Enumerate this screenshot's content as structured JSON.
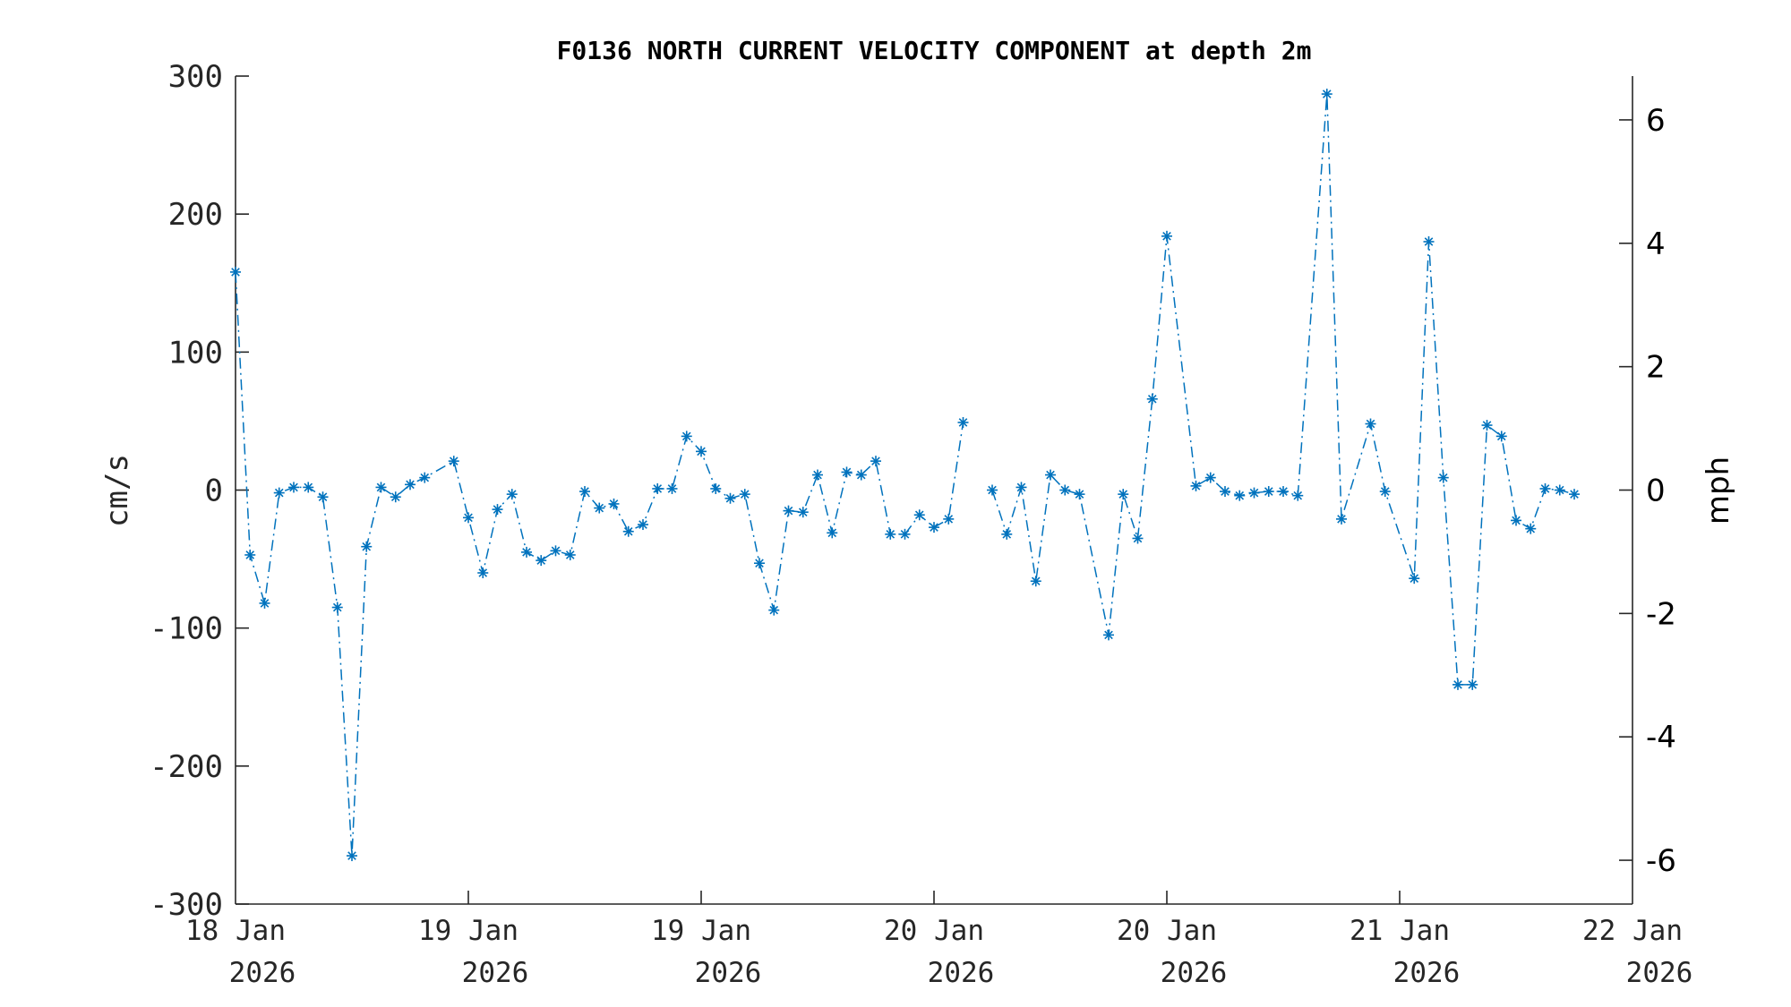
{
  "chart_data": {
    "type": "line",
    "title": "F0136 NORTH CURRENT VELOCITY COMPONENT at depth 2m",
    "ylabel": "cm/s",
    "ylabel_right": "mph",
    "ylim": [
      -300,
      300
    ],
    "ylim_right": [
      -6.71,
      6.71
    ],
    "xlim": [
      "2026-01-18T00:00",
      "2026-01-22T00:00"
    ],
    "yticks": [
      "300",
      "200",
      "100",
      "0",
      "-100",
      "-200",
      "-300"
    ],
    "yticks_right": [
      "6",
      "4",
      "2",
      "0",
      "-2",
      "-4",
      "-6"
    ],
    "xticks": [
      {
        "line1": "18 Jan",
        "line2": "2026"
      },
      {
        "line1": "19 Jan",
        "line2": "2026"
      },
      {
        "line1": "19 Jan",
        "line2": "2026"
      },
      {
        "line1": "20 Jan",
        "line2": "2026"
      },
      {
        "line1": "20 Jan",
        "line2": "2026"
      },
      {
        "line1": "21 Jan",
        "line2": "2026"
      },
      {
        "line1": "22 Jan",
        "line2": "2026"
      }
    ],
    "grid": false,
    "series_color": "#0072BD",
    "marker": "asterisk",
    "line_style": "dash-dot",
    "series": [
      {
        "values": [
          [
            "2026-01-18T00:00",
            158
          ],
          [
            "2026-01-18T01:00",
            -47
          ],
          [
            "2026-01-18T02:00",
            -82
          ],
          [
            "2026-01-18T03:00",
            -2
          ],
          [
            "2026-01-18T04:00",
            2
          ],
          [
            "2026-01-18T05:00",
            2
          ],
          [
            "2026-01-18T06:00",
            -5
          ],
          [
            "2026-01-18T07:00",
            -85
          ],
          [
            "2026-01-18T08:00",
            -265
          ],
          [
            "2026-01-18T09:00",
            -41
          ],
          [
            "2026-01-18T10:00",
            2
          ],
          [
            "2026-01-18T11:00",
            -5
          ],
          [
            "2026-01-18T12:00",
            4
          ],
          [
            "2026-01-18T13:00",
            9
          ],
          [
            "2026-01-18T15:00",
            21
          ],
          [
            "2026-01-18T16:00",
            -20
          ],
          [
            "2026-01-18T17:00",
            -60
          ],
          [
            "2026-01-18T18:00",
            -14
          ],
          [
            "2026-01-18T19:00",
            -3
          ],
          [
            "2026-01-18T20:00",
            -45
          ],
          [
            "2026-01-18T21:00",
            -51
          ],
          [
            "2026-01-18T22:00",
            -44
          ],
          [
            "2026-01-18T23:00",
            -47
          ],
          [
            "2026-01-19T00:00",
            -1
          ],
          [
            "2026-01-19T01:00",
            -13
          ],
          [
            "2026-01-19T02:00",
            -10
          ],
          [
            "2026-01-19T03:00",
            -30
          ],
          [
            "2026-01-19T04:00",
            -25
          ],
          [
            "2026-01-19T05:00",
            1
          ],
          [
            "2026-01-19T06:00",
            1
          ],
          [
            "2026-01-19T07:00",
            39
          ],
          [
            "2026-01-19T08:00",
            28
          ],
          [
            "2026-01-19T09:00",
            1
          ],
          [
            "2026-01-19T10:00",
            -6
          ],
          [
            "2026-01-19T11:00",
            -3
          ],
          [
            "2026-01-19T12:00",
            -53
          ],
          [
            "2026-01-19T13:00",
            -87
          ],
          [
            "2026-01-19T14:00",
            -15
          ],
          [
            "2026-01-19T15:00",
            -16
          ],
          [
            "2026-01-19T16:00",
            11
          ],
          [
            "2026-01-19T17:00",
            -31
          ],
          [
            "2026-01-19T18:00",
            13
          ],
          [
            "2026-01-19T19:00",
            11
          ],
          [
            "2026-01-19T20:00",
            21
          ],
          [
            "2026-01-19T21:00",
            -32
          ],
          [
            "2026-01-19T22:00",
            -32
          ],
          [
            "2026-01-19T23:00",
            -18
          ],
          [
            "2026-01-20T00:00",
            -27
          ],
          [
            "2026-01-20T01:00",
            -21
          ],
          [
            "2026-01-20T02:00",
            49
          ],
          null,
          [
            "2026-01-20T04:00",
            0
          ],
          [
            "2026-01-20T05:00",
            -32
          ],
          [
            "2026-01-20T06:00",
            2
          ],
          [
            "2026-01-20T07:00",
            -66
          ],
          [
            "2026-01-20T08:00",
            11
          ],
          [
            "2026-01-20T09:00",
            0
          ],
          [
            "2026-01-20T10:00",
            -3
          ],
          [
            "2026-01-20T12:00",
            -105
          ],
          [
            "2026-01-20T13:00",
            -3
          ],
          [
            "2026-01-20T14:00",
            -35
          ],
          [
            "2026-01-20T15:00",
            66
          ],
          [
            "2026-01-20T16:00",
            184
          ],
          [
            "2026-01-20T18:00",
            3
          ],
          [
            "2026-01-20T19:00",
            9
          ],
          [
            "2026-01-20T20:00",
            -1
          ],
          [
            "2026-01-20T21:00",
            -4
          ],
          [
            "2026-01-20T22:00",
            -2
          ],
          [
            "2026-01-20T23:00",
            -1
          ],
          [
            "2026-01-21T00:00",
            -1
          ],
          [
            "2026-01-21T01:00",
            -4
          ],
          [
            "2026-01-21T03:00",
            287
          ],
          [
            "2026-01-21T04:00",
            -21
          ],
          [
            "2026-01-21T06:00",
            48
          ],
          [
            "2026-01-21T07:00",
            -1
          ],
          [
            "2026-01-21T09:00",
            -64
          ],
          [
            "2026-01-21T10:00",
            180
          ],
          [
            "2026-01-21T11:00",
            9
          ],
          [
            "2026-01-21T12:00",
            -141
          ],
          [
            "2026-01-21T13:00",
            -141
          ],
          [
            "2026-01-21T14:00",
            47
          ],
          [
            "2026-01-21T15:00",
            39
          ],
          [
            "2026-01-21T16:00",
            -22
          ],
          [
            "2026-01-21T17:00",
            -28
          ],
          [
            "2026-01-21T18:00",
            1
          ],
          [
            "2026-01-21T19:00",
            0
          ],
          [
            "2026-01-21T20:00",
            -3
          ]
        ]
      }
    ]
  }
}
